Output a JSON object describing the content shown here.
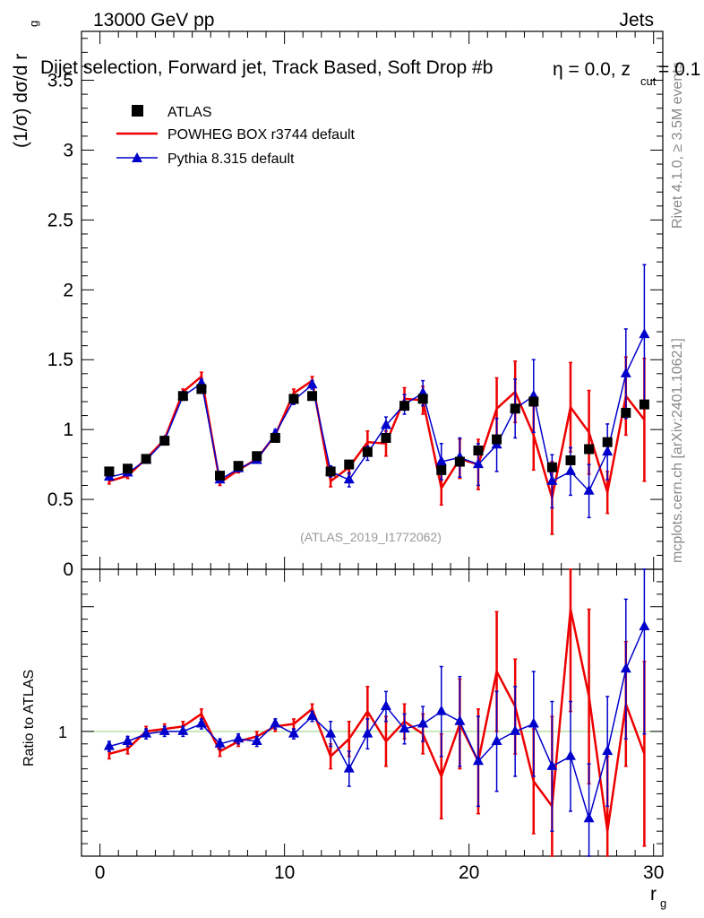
{
  "header": {
    "energy": "13000 GeV pp",
    "process": "Jets"
  },
  "sidebar": {
    "rivet": "Rivet 4.1.0, ≥ 3.5M events",
    "mcplots": "mcplots.cern.ch [arXiv:2401.10621]"
  },
  "chart_data": {
    "type": "scatter",
    "title": "Dijet selection, Forward jet, Track Based, Soft Drop #beta = 0.0, z_cut = 0.1",
    "title_parts": {
      "main": "Dijet selection, Forward jet, Track Based, Soft Drop #b",
      "eta": "η = 0.0, z",
      "sub": "cut",
      "tail": " = 0.1"
    },
    "analysis_id": "(ATLAS_2019_I1772062)",
    "xlabel": "r",
    "xlabel_sub": "g",
    "ylabel": "(1/σ) dσ/d r",
    "ylabel_sub": "g",
    "ratio_ylabel": "Ratio to ATLAS",
    "xlim": [
      -1,
      30.5
    ],
    "ylim": [
      0,
      3.85
    ],
    "ratio_ylim": [
      0.5,
      1.65
    ],
    "x_ticks": [
      "0",
      "10",
      "20",
      "30"
    ],
    "y_ticks": [
      "0",
      "0.5",
      "1",
      "1.5",
      "2",
      "2.5",
      "3",
      "3.5"
    ],
    "ratio_ticks": [
      "1"
    ],
    "legend": [
      "ATLAS",
      "POWHEG BOX r3744 default",
      "Pythia 8.315 default"
    ],
    "legend_position": "top-left",
    "x": [
      0.5,
      1.5,
      2.5,
      3.5,
      4.5,
      5.5,
      6.5,
      7.5,
      8.5,
      9.5,
      10.5,
      11.5,
      12.5,
      13.5,
      14.5,
      15.5,
      16.5,
      17.5,
      18.5,
      19.5,
      20.5,
      21.5,
      22.5,
      23.5,
      24.5,
      25.5,
      26.5,
      27.5,
      28.5,
      29.5
    ],
    "series": [
      {
        "name": "ATLAS",
        "color": "#000000",
        "values": [
          0.7,
          0.72,
          0.79,
          0.92,
          1.24,
          1.29,
          0.67,
          0.74,
          0.81,
          0.94,
          1.22,
          1.24,
          0.7,
          0.75,
          0.84,
          0.94,
          1.17,
          1.22,
          0.71,
          0.77,
          0.85,
          0.93,
          1.15,
          1.2,
          0.73,
          0.78,
          0.86,
          0.91,
          1.12,
          1.18
        ]
      },
      {
        "name": "POWHEG BOX r3744 default",
        "color": "#ee0000",
        "values": [
          0.63,
          0.67,
          0.79,
          0.93,
          1.27,
          1.38,
          0.62,
          0.71,
          0.79,
          0.96,
          1.26,
          1.35,
          0.63,
          0.73,
          0.91,
          0.9,
          1.22,
          1.21,
          0.58,
          0.79,
          0.75,
          1.15,
          1.27,
          0.96,
          0.51,
          1.16,
          0.98,
          0.55,
          1.24,
          1.07
        ],
        "errors": [
          0.02,
          0.02,
          0.02,
          0.02,
          0.02,
          0.03,
          0.02,
          0.02,
          0.02,
          0.02,
          0.03,
          0.03,
          0.04,
          0.05,
          0.08,
          0.09,
          0.08,
          0.1,
          0.12,
          0.14,
          0.18,
          0.22,
          0.22,
          0.25,
          0.26,
          0.32,
          0.3,
          0.15,
          0.28,
          0.44
        ]
      },
      {
        "name": "Pythia 8.315 default",
        "color": "#0000cc",
        "values": [
          0.66,
          0.69,
          0.78,
          0.92,
          1.24,
          1.33,
          0.64,
          0.72,
          0.78,
          0.97,
          1.21,
          1.32,
          0.7,
          0.64,
          0.83,
          1.03,
          1.18,
          1.26,
          0.77,
          0.8,
          0.75,
          0.89,
          1.15,
          1.24,
          0.63,
          0.7,
          0.56,
          0.84,
          1.4,
          1.68
        ],
        "errors": [
          0.02,
          0.02,
          0.02,
          0.02,
          0.02,
          0.03,
          0.02,
          0.02,
          0.02,
          0.03,
          0.03,
          0.03,
          0.04,
          0.05,
          0.05,
          0.06,
          0.07,
          0.09,
          0.13,
          0.14,
          0.15,
          0.19,
          0.21,
          0.26,
          0.19,
          0.17,
          0.19,
          0.2,
          0.32,
          0.5
        ]
      }
    ],
    "ratio_series": [
      {
        "name": "POWHEG BOX r3744 default",
        "color": "#ee0000",
        "values": [
          0.91,
          0.93,
          1.0,
          1.01,
          1.02,
          1.07,
          0.92,
          0.96,
          0.98,
          1.02,
          1.03,
          1.09,
          0.9,
          0.97,
          1.08,
          0.96,
          1.04,
          0.99,
          0.82,
          1.03,
          0.88,
          1.24,
          1.1,
          0.8,
          0.7,
          1.49,
          1.14,
          0.6,
          1.11,
          0.91
        ],
        "errors": [
          0.02,
          0.02,
          0.02,
          0.02,
          0.02,
          0.02,
          0.02,
          0.02,
          0.02,
          0.02,
          0.02,
          0.02,
          0.05,
          0.07,
          0.1,
          0.1,
          0.07,
          0.08,
          0.17,
          0.18,
          0.21,
          0.24,
          0.19,
          0.21,
          0.36,
          0.41,
          0.35,
          0.3,
          0.25,
          0.37
        ]
      },
      {
        "name": "Pythia 8.315 default",
        "color": "#0000cc",
        "values": [
          0.94,
          0.96,
          0.99,
          1.0,
          1.0,
          1.03,
          0.95,
          0.97,
          0.96,
          1.03,
          0.99,
          1.06,
          0.99,
          0.85,
          0.99,
          1.1,
          1.01,
          1.03,
          1.08,
          1.04,
          0.88,
          0.96,
          1.0,
          1.03,
          0.86,
          0.9,
          0.65,
          0.92,
          1.25,
          1.42
        ],
        "errors": [
          0.02,
          0.02,
          0.02,
          0.02,
          0.02,
          0.02,
          0.02,
          0.02,
          0.02,
          0.02,
          0.02,
          0.02,
          0.05,
          0.07,
          0.06,
          0.06,
          0.06,
          0.07,
          0.18,
          0.18,
          0.18,
          0.2,
          0.18,
          0.21,
          0.26,
          0.22,
          0.22,
          0.22,
          0.28,
          0.43
        ]
      }
    ]
  }
}
